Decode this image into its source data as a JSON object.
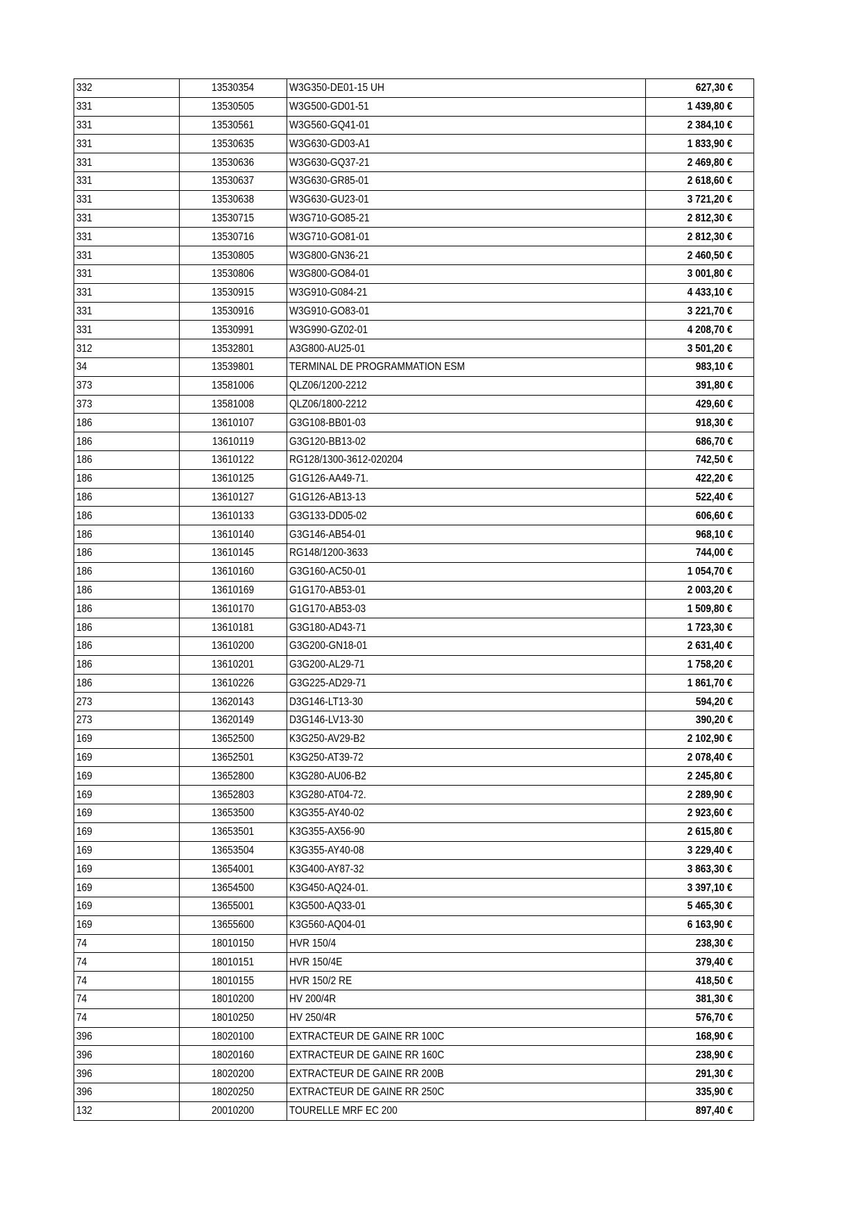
{
  "table": {
    "rows": [
      [
        "332",
        "13530354",
        "W3G350-DE01-15 UH",
        "627,30 €"
      ],
      [
        "331",
        "13530505",
        "W3G500-GD01-51",
        "1 439,80 €"
      ],
      [
        "331",
        "13530561",
        "W3G560-GQ41-01",
        "2 384,10 €"
      ],
      [
        "331",
        "13530635",
        "W3G630-GD03-A1",
        "1 833,90 €"
      ],
      [
        "331",
        "13530636",
        "W3G630-GQ37-21",
        "2 469,80 €"
      ],
      [
        "331",
        "13530637",
        "W3G630-GR85-01",
        "2 618,60 €"
      ],
      [
        "331",
        "13530638",
        "W3G630-GU23-01",
        "3 721,20 €"
      ],
      [
        "331",
        "13530715",
        "W3G710-GO85-21",
        "2 812,30 €"
      ],
      [
        "331",
        "13530716",
        "W3G710-GO81-01",
        "2 812,30 €"
      ],
      [
        "331",
        "13530805",
        "W3G800-GN36-21",
        "2 460,50 €"
      ],
      [
        "331",
        "13530806",
        "W3G800-GO84-01",
        "3 001,80 €"
      ],
      [
        "331",
        "13530915",
        "W3G910-G084-21",
        "4 433,10 €"
      ],
      [
        "331",
        "13530916",
        "W3G910-GO83-01",
        "3 221,70 €"
      ],
      [
        "331",
        "13530991",
        "W3G990-GZ02-01",
        "4 208,70 €"
      ],
      [
        "312",
        "13532801",
        "A3G800-AU25-01",
        "3 501,20 €"
      ],
      [
        "34",
        "13539801",
        "TERMINAL DE PROGRAMMATION ESM",
        "983,10 €"
      ],
      [
        "373",
        "13581006",
        "QLZ06/1200-2212",
        "391,80 €"
      ],
      [
        "373",
        "13581008",
        "QLZ06/1800-2212",
        "429,60 €"
      ],
      [
        "186",
        "13610107",
        "G3G108-BB01-03",
        "918,30 €"
      ],
      [
        "186",
        "13610119",
        "G3G120-BB13-02",
        "686,70 €"
      ],
      [
        "186",
        "13610122",
        "RG128/1300-3612-020204",
        "742,50 €"
      ],
      [
        "186",
        "13610125",
        "G1G126-AA49-71.",
        "422,20 €"
      ],
      [
        "186",
        "13610127",
        "G1G126-AB13-13",
        "522,40 €"
      ],
      [
        "186",
        "13610133",
        "G3G133-DD05-02",
        "606,60 €"
      ],
      [
        "186",
        "13610140",
        "G3G146-AB54-01",
        "968,10 €"
      ],
      [
        "186",
        "13610145",
        "RG148/1200-3633",
        "744,00 €"
      ],
      [
        "186",
        "13610160",
        "G3G160-AC50-01",
        "1 054,70 €"
      ],
      [
        "186",
        "13610169",
        "G1G170-AB53-01",
        "2 003,20 €"
      ],
      [
        "186",
        "13610170",
        "G1G170-AB53-03",
        "1 509,80 €"
      ],
      [
        "186",
        "13610181",
        "G3G180-AD43-71",
        "1 723,30 €"
      ],
      [
        "186",
        "13610200",
        "G3G200-GN18-01",
        "2 631,40 €"
      ],
      [
        "186",
        "13610201",
        "G3G200-AL29-71",
        "1 758,20 €"
      ],
      [
        "186",
        "13610226",
        "G3G225-AD29-71",
        "1 861,70 €"
      ],
      [
        "273",
        "13620143",
        "D3G146-LT13-30",
        "594,20 €"
      ],
      [
        "273",
        "13620149",
        "D3G146-LV13-30",
        "390,20 €"
      ],
      [
        "169",
        "13652500",
        "K3G250-AV29-B2",
        "2 102,90 €"
      ],
      [
        "169",
        "13652501",
        "K3G250-AT39-72",
        "2 078,40 €"
      ],
      [
        "169",
        "13652800",
        "K3G280-AU06-B2",
        "2 245,80 €"
      ],
      [
        "169",
        "13652803",
        "K3G280-AT04-72.",
        "2 289,90 €"
      ],
      [
        "169",
        "13653500",
        "K3G355-AY40-02",
        "2 923,60 €"
      ],
      [
        "169",
        "13653501",
        "K3G355-AX56-90",
        "2 615,80 €"
      ],
      [
        "169",
        "13653504",
        "K3G355-AY40-08",
        "3 229,40 €"
      ],
      [
        "169",
        "13654001",
        "K3G400-AY87-32",
        "3 863,30 €"
      ],
      [
        "169",
        "13654500",
        "K3G450-AQ24-01.",
        "3 397,10 €"
      ],
      [
        "169",
        "13655001",
        "K3G500-AQ33-01",
        "5 465,30 €"
      ],
      [
        "169",
        "13655600",
        "K3G560-AQ04-01",
        "6 163,90 €"
      ],
      [
        "74",
        "18010150",
        "HVR 150/4",
        "238,30 €"
      ],
      [
        "74",
        "18010151",
        "HVR 150/4E",
        "379,40 €"
      ],
      [
        "74",
        "18010155",
        "HVR 150/2 RE",
        "418,50 €"
      ],
      [
        "74",
        "18010200",
        "HV 200/4R",
        "381,30 €"
      ],
      [
        "74",
        "18010250",
        "HV 250/4R",
        "576,70 €"
      ],
      [
        "396",
        "18020100",
        "EXTRACTEUR DE GAINE RR 100C",
        "168,90 €"
      ],
      [
        "396",
        "18020160",
        "EXTRACTEUR DE GAINE RR 160C",
        "238,90 €"
      ],
      [
        "396",
        "18020200",
        "EXTRACTEUR DE GAINE RR 200B",
        "291,30 €"
      ],
      [
        "396",
        "18020250",
        "EXTRACTEUR DE GAINE RR 250C",
        "335,90 €"
      ],
      [
        "132",
        "20010200",
        "TOURELLE MRF EC 200",
        "897,40 €"
      ]
    ]
  }
}
